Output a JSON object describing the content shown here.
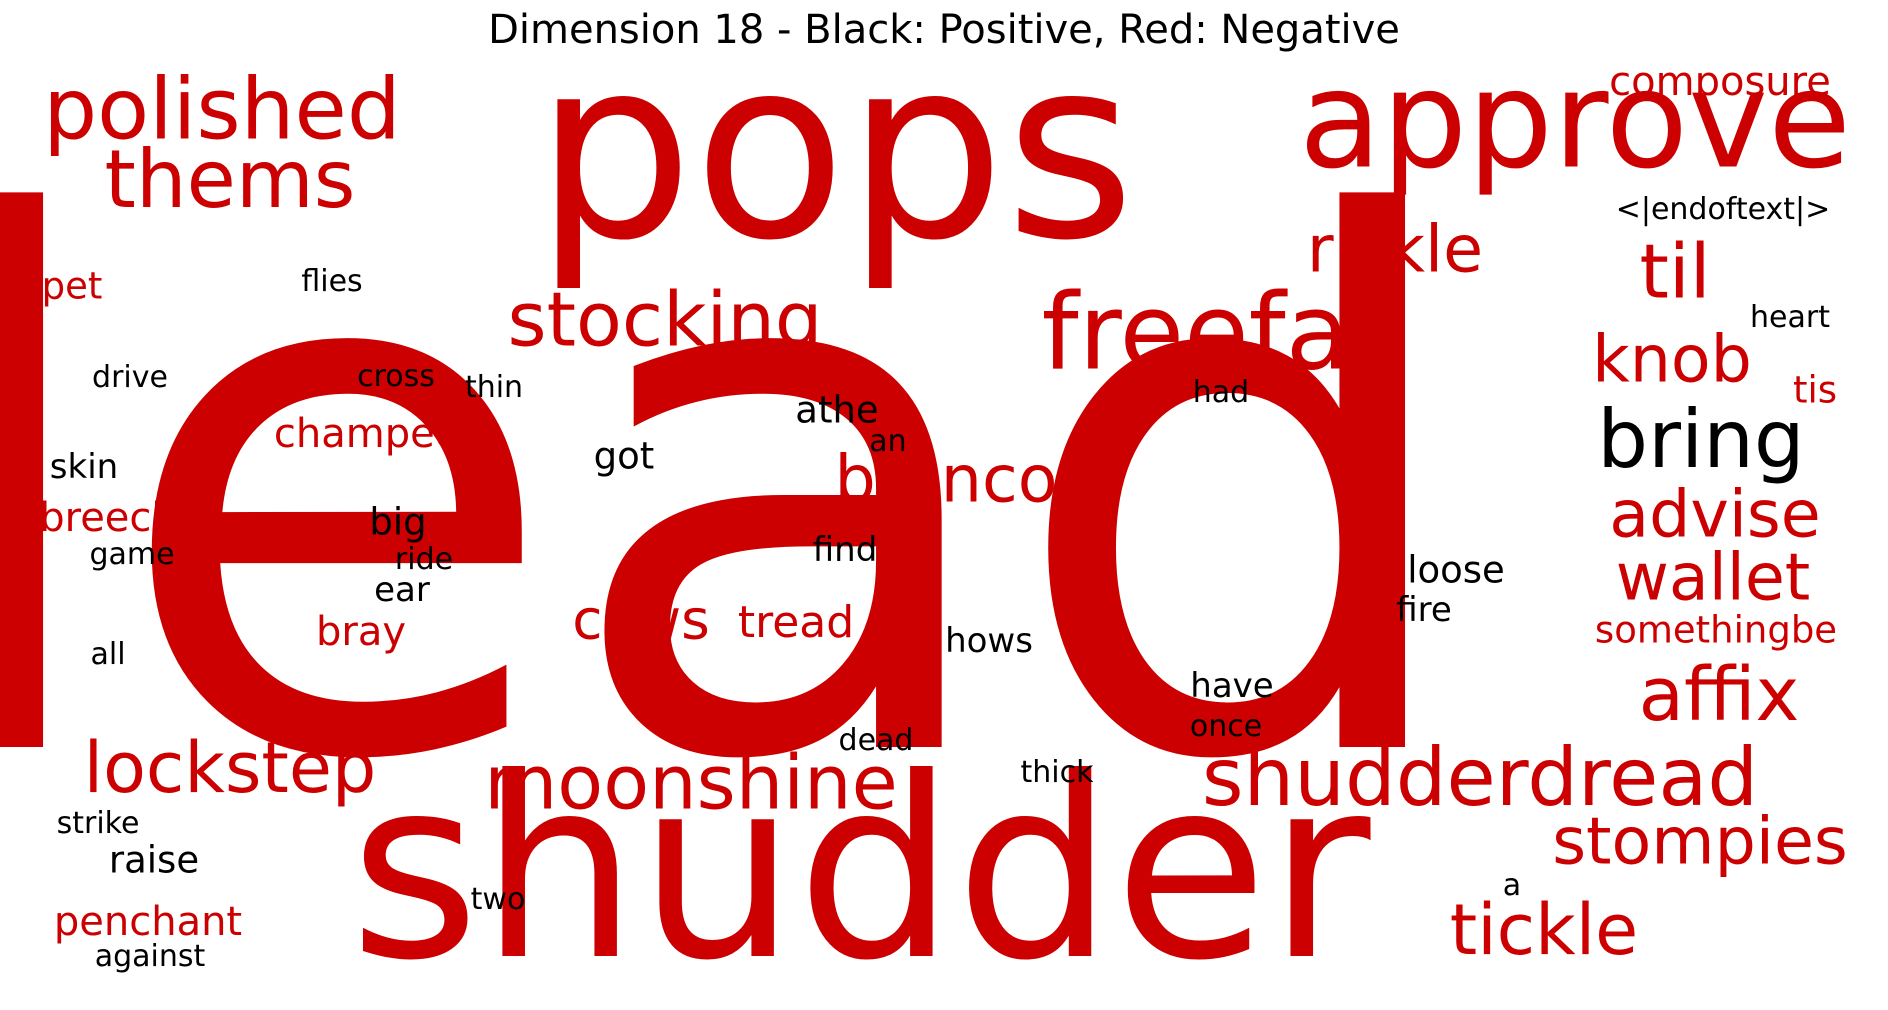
{
  "title": "Dimension 18 - Black: Positive, Red: Negative",
  "colors": {
    "positive": "#000000",
    "negative": "#cc0000"
  },
  "words": [
    {
      "text": "lead",
      "polarity": "negative"
    },
    {
      "text": "pops",
      "polarity": "negative"
    },
    {
      "text": "shudder",
      "polarity": "negative"
    },
    {
      "text": "approve",
      "polarity": "negative"
    },
    {
      "text": "polished",
      "polarity": "negative"
    },
    {
      "text": "thems",
      "polarity": "negative"
    },
    {
      "text": "composure",
      "polarity": "negative"
    },
    {
      "text": "<|endoftext|>",
      "polarity": "positive"
    },
    {
      "text": "rickle",
      "polarity": "negative"
    },
    {
      "text": "til",
      "polarity": "negative"
    },
    {
      "text": "stocking",
      "polarity": "negative"
    },
    {
      "text": "freefall",
      "polarity": "negative"
    },
    {
      "text": "heart",
      "polarity": "positive"
    },
    {
      "text": "knob",
      "polarity": "negative"
    },
    {
      "text": "tis",
      "polarity": "negative"
    },
    {
      "text": "bring",
      "polarity": "positive"
    },
    {
      "text": "pet",
      "polarity": "negative"
    },
    {
      "text": "flies",
      "polarity": "positive"
    },
    {
      "text": "drive",
      "polarity": "positive"
    },
    {
      "text": "cross",
      "polarity": "positive"
    },
    {
      "text": "thin",
      "polarity": "positive"
    },
    {
      "text": "had",
      "polarity": "positive"
    },
    {
      "text": "athe",
      "polarity": "positive"
    },
    {
      "text": "an",
      "polarity": "positive"
    },
    {
      "text": "champed",
      "polarity": "negative"
    },
    {
      "text": "skin",
      "polarity": "positive"
    },
    {
      "text": "got",
      "polarity": "positive"
    },
    {
      "text": "bronco",
      "polarity": "negative"
    },
    {
      "text": "advise",
      "polarity": "negative"
    },
    {
      "text": "breech",
      "polarity": "negative"
    },
    {
      "text": "big",
      "polarity": "positive"
    },
    {
      "text": "game",
      "polarity": "positive"
    },
    {
      "text": "ride",
      "polarity": "positive"
    },
    {
      "text": "find",
      "polarity": "positive"
    },
    {
      "text": "loose",
      "polarity": "positive"
    },
    {
      "text": "wallet",
      "polarity": "negative"
    },
    {
      "text": "ear",
      "polarity": "positive"
    },
    {
      "text": "fire",
      "polarity": "positive"
    },
    {
      "text": "cows",
      "polarity": "negative"
    },
    {
      "text": "tread",
      "polarity": "negative"
    },
    {
      "text": "bray",
      "polarity": "negative"
    },
    {
      "text": "hows",
      "polarity": "positive"
    },
    {
      "text": "somethingbe",
      "polarity": "negative"
    },
    {
      "text": "all",
      "polarity": "positive"
    },
    {
      "text": "affix",
      "polarity": "negative"
    },
    {
      "text": "have",
      "polarity": "positive"
    },
    {
      "text": "once",
      "polarity": "positive"
    },
    {
      "text": "dead",
      "polarity": "positive"
    },
    {
      "text": "lockstep",
      "polarity": "negative"
    },
    {
      "text": "moonshine",
      "polarity": "negative"
    },
    {
      "text": "thick",
      "polarity": "positive"
    },
    {
      "text": "shudderdread",
      "polarity": "negative"
    },
    {
      "text": "strike",
      "polarity": "positive"
    },
    {
      "text": "stompies",
      "polarity": "negative"
    },
    {
      "text": "raise",
      "polarity": "positive"
    },
    {
      "text": "a",
      "polarity": "positive"
    },
    {
      "text": "two",
      "polarity": "positive"
    },
    {
      "text": "penchant",
      "polarity": "negative"
    },
    {
      "text": "tickle",
      "polarity": "negative"
    },
    {
      "text": "against",
      "polarity": "positive"
    }
  ]
}
